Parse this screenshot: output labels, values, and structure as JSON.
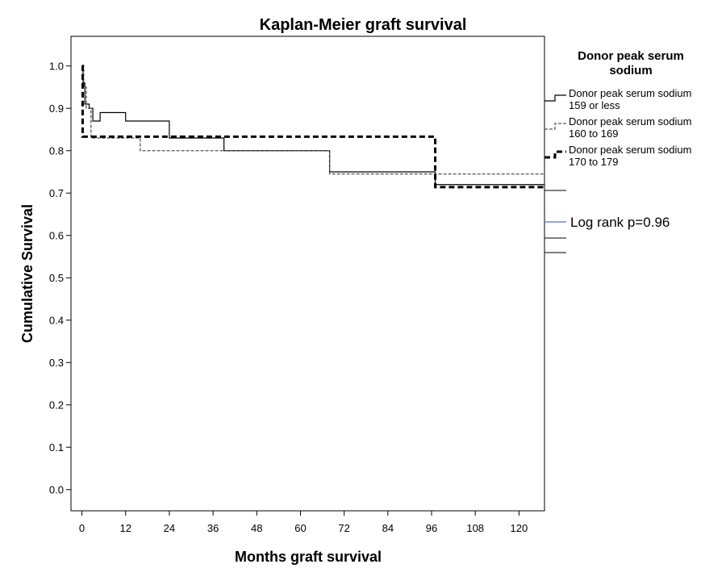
{
  "chart_data": {
    "type": "line",
    "title": "Kaplan-Meier graft survival",
    "xlabel": "Months graft survival",
    "ylabel": "Cumulative Survival",
    "xlim": [
      -3,
      127
    ],
    "ylim": [
      -0.05,
      1.07
    ],
    "x_ticks": [
      0,
      12,
      24,
      36,
      48,
      60,
      72,
      84,
      96,
      108,
      120
    ],
    "y_ticks": [
      0.0,
      0.1,
      0.2,
      0.3,
      0.4,
      0.5,
      0.6,
      0.7,
      0.8,
      0.9,
      1.0
    ],
    "y_tick_labels": [
      "0.0",
      "0.1",
      "0.2",
      "0.3",
      "0.4",
      "0.5",
      "0.6",
      "0.7",
      "0.8",
      "0.9",
      "1.0"
    ],
    "grid": false,
    "legend_title": "Donor peak serum sodium",
    "legend_position": "right",
    "series": [
      {
        "name": "Donor peak serum sodium 159 or less",
        "color": "#000000",
        "dash": "solid",
        "steps": [
          [
            0,
            1.0
          ],
          [
            0.3,
            0.96
          ],
          [
            0.8,
            0.91
          ],
          [
            2,
            0.9
          ],
          [
            3,
            0.87
          ],
          [
            5,
            0.89
          ],
          [
            12,
            0.87
          ],
          [
            24,
            0.83
          ],
          [
            39,
            0.8
          ],
          [
            68,
            0.75
          ],
          [
            97,
            0.72
          ],
          [
            127,
            0.72
          ]
        ]
      },
      {
        "name": "Donor peak serum sodium 160 to 169",
        "color": "#555555",
        "dash": "dashed",
        "steps": [
          [
            0,
            1.0
          ],
          [
            0.5,
            0.95
          ],
          [
            1.2,
            0.9
          ],
          [
            2.5,
            0.83
          ],
          [
            16,
            0.8
          ],
          [
            68,
            0.745
          ],
          [
            127,
            0.745
          ]
        ]
      },
      {
        "name": "Donor peak serum sodium 170 to 179",
        "color": "#000000",
        "dash": "bold-dashed",
        "steps": [
          [
            0,
            1.0
          ],
          [
            0.2,
            0.833
          ],
          [
            97,
            0.714
          ],
          [
            127,
            0.714
          ]
        ]
      }
    ],
    "annotations": [
      {
        "text": "Log rank p=0.96"
      }
    ]
  }
}
